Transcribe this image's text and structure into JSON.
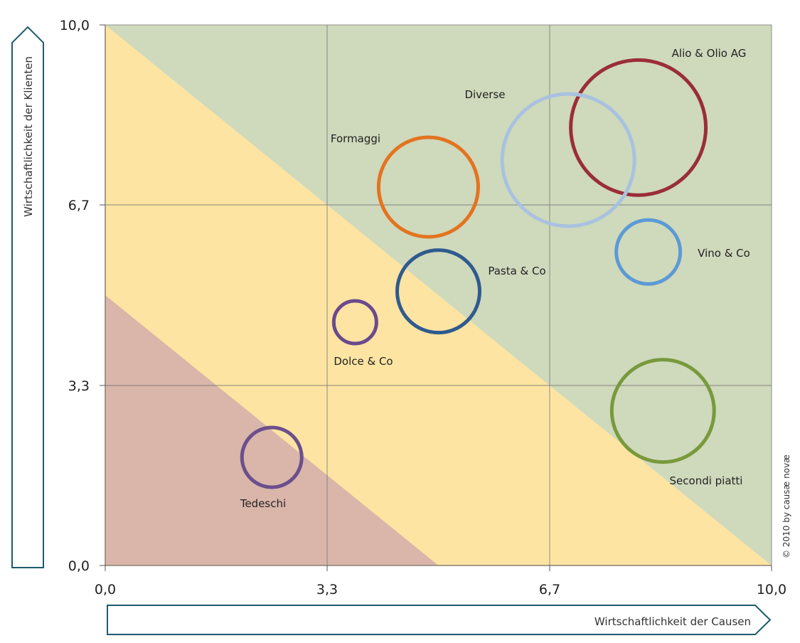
{
  "chart_data": {
    "type": "bubble",
    "xlabel": "Wirtschaftlichkeit der Causen",
    "ylabel": "Wirtschaftlichkeit der Klienten",
    "xlim": [
      0,
      10
    ],
    "ylim": [
      0,
      10
    ],
    "x_ticks": [
      "0,0",
      "3,3",
      "6,7",
      "10,0"
    ],
    "y_ticks": [
      "0,0",
      "3,3",
      "6,7",
      "10,0"
    ],
    "x_tick_values": [
      0,
      3.33,
      6.67,
      10
    ],
    "y_tick_values": [
      0,
      3.33,
      6.67,
      10
    ],
    "grid": true,
    "zones": [
      {
        "region": "x+y<5",
        "color": "#d9b5aa"
      },
      {
        "region": "5<=x+y<10",
        "color": "#fde4a2"
      },
      {
        "region": "x+y>=10",
        "color": "#cfd9bc"
      }
    ],
    "series": [
      {
        "name": "Alio & Olio AG",
        "x": 8.0,
        "y": 8.1,
        "size": 95,
        "color": "#9a2e37"
      },
      {
        "name": "Diverse",
        "x": 6.95,
        "y": 7.5,
        "size": 93,
        "color": "#a8c2e0"
      },
      {
        "name": "Formaggi",
        "x": 4.85,
        "y": 7.0,
        "size": 70,
        "color": "#e4731f"
      },
      {
        "name": "Vino & Co",
        "x": 8.15,
        "y": 5.8,
        "size": 45,
        "color": "#5b9ad6"
      },
      {
        "name": "Pasta & Co",
        "x": 5.0,
        "y": 5.07,
        "size": 58,
        "color": "#2f5b8e"
      },
      {
        "name": "Dolce & Co",
        "x": 3.75,
        "y": 4.5,
        "size": 30,
        "color": "#6a4a8c"
      },
      {
        "name": "Secondi piatti",
        "x": 8.37,
        "y": 2.86,
        "size": 72,
        "color": "#789a3b"
      },
      {
        "name": "Tedeschi",
        "x": 2.5,
        "y": 2.0,
        "size": 42,
        "color": "#6b4f8c"
      }
    ],
    "copyright": "© 2010 by causæ novæ"
  }
}
